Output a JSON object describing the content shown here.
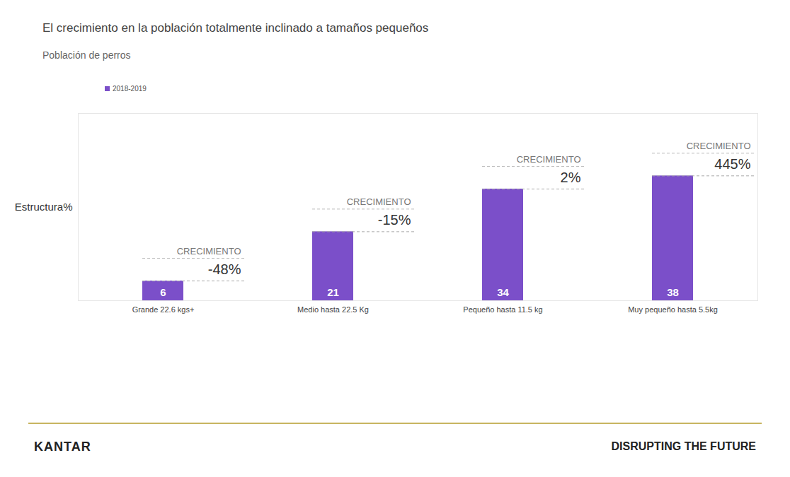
{
  "chart_data": {
    "type": "bar",
    "title": "El crecimiento en la población totalmente inclinado a tamaños pequeños",
    "subtitle": "Población de perros",
    "ylabel": "Estructura%",
    "categories": [
      "Grande 22.6 kgs+",
      "Medio hasta 22.5 Kg",
      "Pequeño hasta 11.5 kg",
      "Muy pequeño hasta 5.5kg"
    ],
    "series": [
      {
        "name": "2018-2019",
        "color": "#7b4fc9",
        "values": [
          6,
          21,
          34,
          38
        ]
      }
    ],
    "growth_title": "CRECIMIENTO",
    "growth": [
      -48,
      -15,
      2,
      445
    ],
    "growth_labels": [
      "-48%",
      "-15%",
      "2%",
      "445%"
    ],
    "ylim": [
      0,
      57
    ],
    "legend": "top-left",
    "data_labels": true,
    "tick_labels": "x",
    "footer": [
      "KANTAR",
      "DISRUPTING THE FUTURE"
    ]
  }
}
